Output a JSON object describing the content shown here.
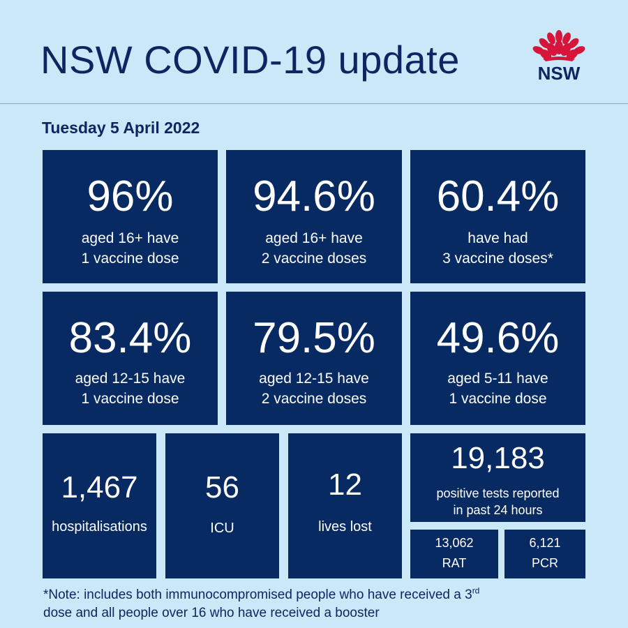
{
  "header": {
    "title": "NSW COVID-19 update",
    "logo_text": "NSW"
  },
  "date": "Tuesday 5 April 2022",
  "vaccine_tiles": [
    {
      "value": "96%",
      "line1": "aged 16+ have",
      "line2": "1 vaccine dose"
    },
    {
      "value": "94.6%",
      "line1": "aged 16+ have",
      "line2": "2 vaccine doses"
    },
    {
      "value": "60.4%",
      "line1": "have had",
      "line2": "3 vaccine doses*"
    },
    {
      "value": "83.4%",
      "line1": "aged 12-15 have",
      "line2": "1 vaccine dose"
    },
    {
      "value": "79.5%",
      "line1": "aged 12-15 have",
      "line2": "2 vaccine doses"
    },
    {
      "value": "49.6%",
      "line1": "aged 5-11 have",
      "line2": "1 vaccine dose"
    }
  ],
  "stats": {
    "hospitalisations": {
      "value": "1,467",
      "label": "hospitalisations"
    },
    "icu": {
      "value": "56",
      "label": "ICU"
    },
    "deaths": {
      "value": "12",
      "label": "lives lost"
    },
    "positive": {
      "value": "19,183",
      "line1": "positive tests reported",
      "line2": "in past 24 hours"
    },
    "rat": {
      "value": "13,062",
      "label": "RAT"
    },
    "pcr": {
      "value": "6,121",
      "label": "PCR"
    }
  },
  "note": {
    "part1": "*Note: includes both immunocompromised  people who have received a 3",
    "sup": "rd",
    "part2": "dose and all people over 16 who have received a booster"
  },
  "colors": {
    "background": "#cbe8f9",
    "tile": "#082a63",
    "text_dark": "#0d2661",
    "logo_red": "#d7153a"
  }
}
